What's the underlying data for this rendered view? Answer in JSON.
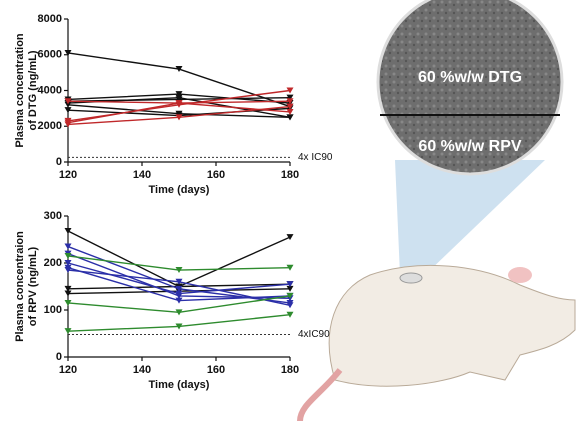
{
  "chart_data": [
    {
      "type": "line",
      "y_label": [
        "Plasma concentration",
        "of DTG (ng/mL)"
      ],
      "x_label": "Time (days)",
      "x": [
        120,
        150,
        180
      ],
      "xlim": [
        120,
        180
      ],
      "xticks": [
        120,
        140,
        160,
        180
      ],
      "ylim": [
        0,
        8000
      ],
      "yticks": [
        0,
        2000,
        4000,
        6000,
        8000
      ],
      "threshold": {
        "value": 260,
        "label": "4x IC90"
      },
      "series": [
        {
          "color": "#111111",
          "values": [
            6100,
            5200,
            3100
          ]
        },
        {
          "color": "#111111",
          "values": [
            3500,
            3800,
            3300
          ]
        },
        {
          "color": "#111111",
          "values": [
            3400,
            3500,
            3600
          ]
        },
        {
          "color": "#111111",
          "values": [
            3200,
            2700,
            2500
          ]
        },
        {
          "color": "#111111",
          "values": [
            2900,
            2600,
            3000
          ]
        },
        {
          "color": "#111111",
          "values": [
            3300,
            3600,
            2500
          ]
        },
        {
          "color": "#c0282a",
          "values": [
            2300,
            3200,
            4000
          ]
        },
        {
          "color": "#c0282a",
          "values": [
            2100,
            2500,
            3100
          ]
        },
        {
          "color": "#c0282a",
          "values": [
            3400,
            3300,
            2800
          ]
        },
        {
          "color": "#c0282a",
          "values": [
            2200,
            3300,
            3400
          ]
        }
      ]
    },
    {
      "type": "line",
      "y_label": [
        "Plasma concentraion",
        "of RPV (ng/mL)"
      ],
      "x_label": "Time (days)",
      "x": [
        120,
        150,
        180
      ],
      "xlim": [
        120,
        180
      ],
      "xticks": [
        120,
        140,
        160,
        180
      ],
      "ylim": [
        0,
        300
      ],
      "yticks": [
        0,
        100,
        200,
        300
      ],
      "threshold": {
        "value": 48,
        "label": "4xIC90"
      },
      "series": [
        {
          "color": "#111111",
          "values": [
            268,
            150,
            255
          ]
        },
        {
          "color": "#111111",
          "values": [
            145,
            150,
            155
          ]
        },
        {
          "color": "#111111",
          "values": [
            135,
            140,
            145
          ]
        },
        {
          "color": "#2b2fa8",
          "values": [
            235,
            145,
            115
          ]
        },
        {
          "color": "#2b2fa8",
          "values": [
            220,
            130,
            125
          ]
        },
        {
          "color": "#2b2fa8",
          "values": [
            200,
            135,
            155
          ]
        },
        {
          "color": "#2b2fa8",
          "values": [
            190,
            120,
            130
          ]
        },
        {
          "color": "#2b2fa8",
          "values": [
            185,
            160,
            110
          ]
        },
        {
          "color": "#2e8b2e",
          "values": [
            215,
            185,
            190
          ]
        },
        {
          "color": "#2e8b2e",
          "values": [
            115,
            95,
            130
          ]
        },
        {
          "color": "#2e8b2e",
          "values": [
            55,
            65,
            90
          ]
        }
      ]
    }
  ],
  "illustration": {
    "labels": [
      "60 %w/w DTG",
      "60 %w/w RPV"
    ]
  }
}
